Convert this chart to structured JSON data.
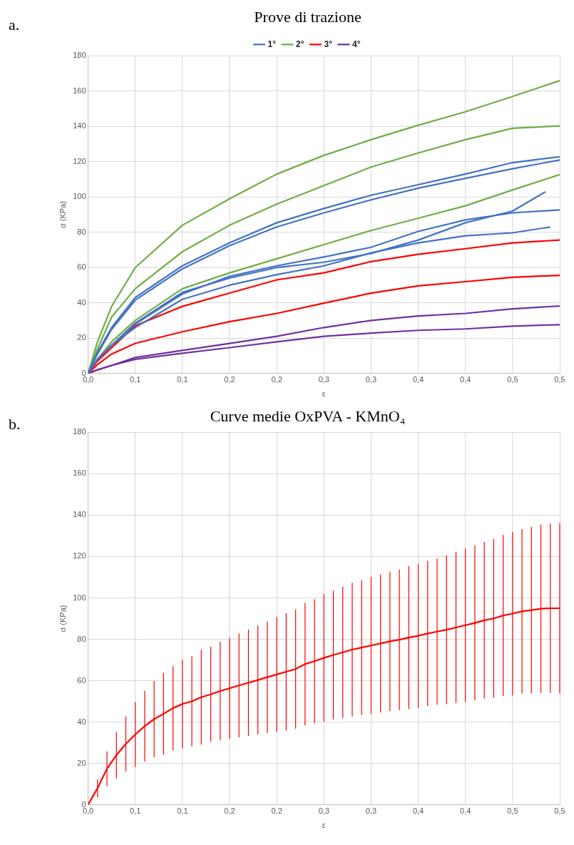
{
  "chart_data": [
    {
      "type": "line",
      "title": "Prove di trazione",
      "xlabel": "ε",
      "ylabel": "σ (KPa)",
      "annotations": [
        "a."
      ],
      "x": [
        0,
        0.01,
        0.025,
        0.05,
        0.1,
        0.15,
        0.2,
        0.25,
        0.3,
        0.35,
        0.4,
        0.45,
        0.5
      ],
      "xlim": [
        0,
        0.5
      ],
      "xticks": [
        {
          "value": 0,
          "label": "0,0"
        },
        {
          "value": 0.05,
          "label": "0,1"
        },
        {
          "value": 0.1,
          "label": "0,1"
        },
        {
          "value": 0.15,
          "label": "0,2"
        },
        {
          "value": 0.2,
          "label": "0,2"
        },
        {
          "value": 0.25,
          "label": "0,3"
        },
        {
          "value": 0.3,
          "label": "0,3"
        },
        {
          "value": 0.35,
          "label": "0,4"
        },
        {
          "value": 0.4,
          "label": "0,4"
        },
        {
          "value": 0.45,
          "label": "0,5"
        },
        {
          "value": 0.5,
          "label": "0,5"
        }
      ],
      "ylim": [
        0,
        180
      ],
      "yticks": [
        0,
        20,
        40,
        60,
        80,
        100,
        120,
        140,
        160,
        180
      ],
      "grid": true,
      "legend": "top",
      "marker": "none",
      "line_style": "solid",
      "series": [
        {
          "name": "1°",
          "color": "#4472c4",
          "values": [
            0,
            12,
            26,
            43,
            61,
            74,
            85.4,
            93.5,
            101,
            107,
            113,
            119.5,
            122.8
          ]
        },
        {
          "color": "#4472c4",
          "values": [
            0,
            11,
            25,
            41.5,
            59.3,
            72.4,
            83,
            91,
            98.4,
            105,
            110.6,
            116,
            121
          ]
        },
        {
          "color": "#4472c4",
          "x": [
            0,
            0.01,
            0.025,
            0.05,
            0.1,
            0.15,
            0.2,
            0.25,
            0.3,
            0.35,
            0.4,
            0.45,
            0.485
          ],
          "values": [
            0,
            8,
            16,
            28.5,
            46,
            54,
            60,
            63,
            68,
            75.6,
            85.4,
            92,
            103
          ]
        },
        {
          "color": "#4472c4",
          "values": [
            0,
            8,
            16,
            28,
            45,
            55,
            61,
            66,
            71.5,
            80.5,
            87,
            91,
            92.7
          ]
        },
        {
          "color": "#4472c4",
          "x": [
            0,
            0.01,
            0.025,
            0.05,
            0.1,
            0.15,
            0.2,
            0.25,
            0.3,
            0.35,
            0.4,
            0.45,
            0.49
          ],
          "values": [
            0,
            8,
            16,
            26,
            42,
            50,
            56,
            61,
            68.3,
            74,
            78,
            79.7,
            83
          ]
        },
        {
          "name": "2°",
          "color": "#70ad47",
          "values": [
            0,
            18,
            38,
            60,
            84,
            99,
            113,
            123.6,
            132.5,
            140.7,
            148.3,
            157,
            166
          ]
        },
        {
          "color": "#70ad47",
          "values": [
            0,
            14,
            32,
            48,
            69,
            84,
            96,
            106.5,
            117,
            125,
            132.5,
            139,
            140.3
          ]
        },
        {
          "color": "#70ad47",
          "values": [
            0,
            8,
            18,
            30,
            48,
            57,
            65,
            73,
            81,
            88,
            95,
            104,
            112.7
          ]
        },
        {
          "name": "3°",
          "color": "#ff0000",
          "x": [
            0,
            0.01,
            0.05,
            0.1,
            0.15,
            0.2,
            0.25,
            0.3,
            0.35,
            0.4,
            0.45,
            0.5
          ],
          "values": [
            0,
            7,
            27,
            38,
            45.5,
            53,
            57,
            63.4,
            67.5,
            70.7,
            74,
            75.6
          ]
        },
        {
          "color": "#ff0000",
          "values": [
            0,
            5,
            11,
            17,
            23.6,
            29.3,
            34,
            39.8,
            45.5,
            49.6,
            52,
            54.5,
            55.6
          ]
        },
        {
          "name": "4°",
          "color": "#7030a0",
          "values": [
            0,
            2,
            4.5,
            9,
            13,
            17,
            21,
            26,
            30,
            32.5,
            34,
            36.6,
            38.2
          ]
        },
        {
          "color": "#7030a0",
          "values": [
            0,
            2,
            4.5,
            8,
            11.4,
            14.6,
            17.9,
            21,
            22.8,
            24.4,
            25.2,
            26.8,
            27.6
          ]
        }
      ]
    },
    {
      "type": "line",
      "title": "Curve medie OxPVA - KMnO₄",
      "xlabel": "ε",
      "ylabel": "σ (KPa)",
      "annotations": [
        "b."
      ],
      "x": [
        0,
        0.01,
        0.02,
        0.03,
        0.04,
        0.05,
        0.06,
        0.07,
        0.08,
        0.09,
        0.1,
        0.11,
        0.12,
        0.13,
        0.14,
        0.15,
        0.16,
        0.17,
        0.18,
        0.19,
        0.2,
        0.21,
        0.22,
        0.23,
        0.24,
        0.25,
        0.26,
        0.27,
        0.28,
        0.29,
        0.3,
        0.31,
        0.32,
        0.33,
        0.34,
        0.35,
        0.36,
        0.37,
        0.38,
        0.39,
        0.4,
        0.41,
        0.42,
        0.43,
        0.44,
        0.45,
        0.46,
        0.47,
        0.48,
        0.49,
        0.5
      ],
      "xlim": [
        0,
        0.5
      ],
      "xticks": [
        {
          "value": 0,
          "label": "0,0"
        },
        {
          "value": 0.05,
          "label": "0,1"
        },
        {
          "value": 0.1,
          "label": "0,1"
        },
        {
          "value": 0.15,
          "label": "0,2"
        },
        {
          "value": 0.2,
          "label": "0,2"
        },
        {
          "value": 0.25,
          "label": "0,3"
        },
        {
          "value": 0.3,
          "label": "0,3"
        },
        {
          "value": 0.35,
          "label": "0,4"
        },
        {
          "value": 0.4,
          "label": "0,4"
        },
        {
          "value": 0.45,
          "label": "0,5"
        },
        {
          "value": 0.5,
          "label": "0,5"
        }
      ],
      "ylim": [
        0,
        180
      ],
      "yticks": [
        0,
        20,
        40,
        60,
        80,
        100,
        120,
        140,
        160,
        180
      ],
      "grid": true,
      "marker": "none",
      "line_style": "solid",
      "series": [
        {
          "color": "#ff0000",
          "values": [
            0,
            8,
            17.4,
            24,
            29.4,
            34,
            38,
            41.4,
            44,
            46.7,
            48.7,
            50,
            52,
            53.4,
            55,
            56.3,
            57.7,
            59,
            60.3,
            61.7,
            63,
            64.3,
            65.6,
            68,
            69.4,
            71,
            72.4,
            73.7,
            75,
            76,
            77,
            78,
            79,
            79.8,
            80.8,
            81.7,
            82.8,
            83.7,
            84.6,
            85.7,
            86.8,
            87.9,
            89.2,
            90.1,
            91.5,
            92.4,
            93.5,
            94.1,
            94.8,
            95,
            95
          ],
          "errors": [
            null,
            4.4,
            8.4,
            11.2,
            13.3,
            15.7,
            17.1,
            18.4,
            19.8,
            20.4,
            21.4,
            21.8,
            22.9,
            23,
            23.7,
            24.3,
            25.1,
            25.7,
            26.3,
            26.9,
            27.7,
            28.3,
            28.8,
            29.6,
            30,
            30.8,
            31.1,
            31.7,
            32.3,
            32.6,
            33.2,
            33.4,
            33.7,
            34,
            34.5,
            34.9,
            35.1,
            35.3,
            36,
            36.6,
            37.1,
            37.4,
            37.9,
            38.4,
            38.9,
            39.6,
            39.8,
            40.2,
            40.7,
            40.9,
            41.1
          ]
        }
      ]
    }
  ]
}
